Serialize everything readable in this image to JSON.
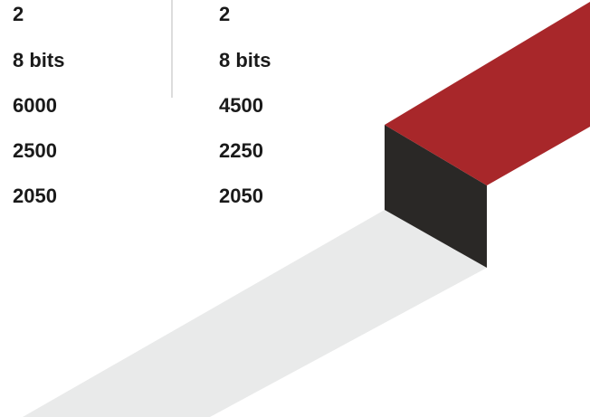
{
  "table": {
    "rows": [
      [
        "2",
        "2"
      ],
      [
        "8 bits",
        "8 bits"
      ],
      [
        "6000",
        "4500"
      ],
      [
        "2500",
        "2250"
      ],
      [
        "2050",
        "2050"
      ]
    ]
  }
}
